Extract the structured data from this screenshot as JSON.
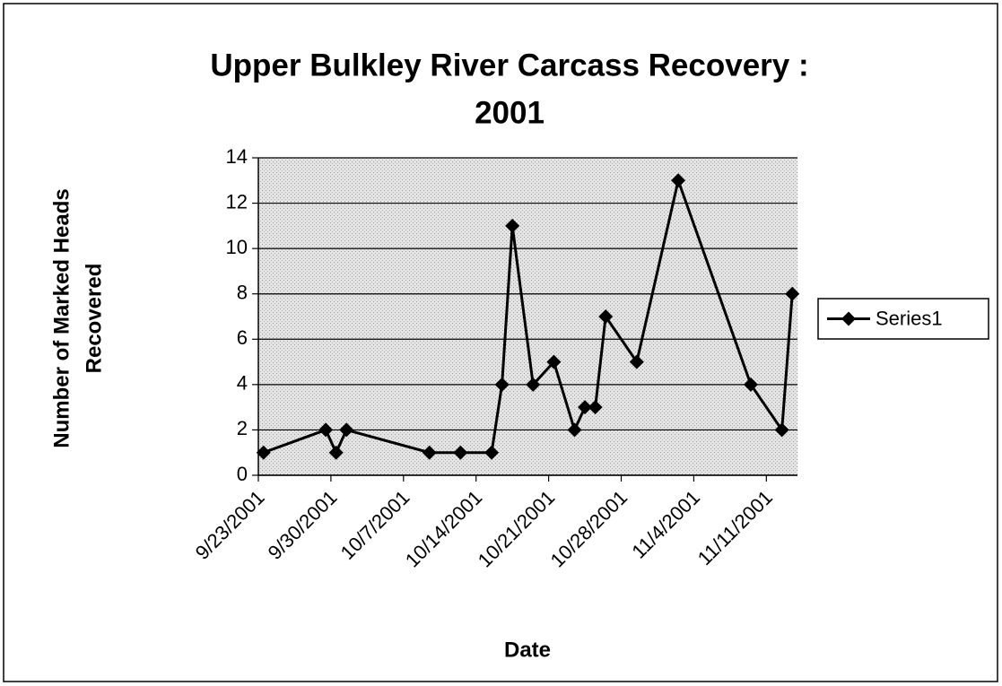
{
  "chart_data": {
    "type": "line",
    "title": "Upper Bulkley River Carcass Recovery :",
    "subtitle": "2001",
    "x_label": "Date",
    "y_label": [
      "Number of Marked Heads",
      "Recovered"
    ],
    "x": [
      "9/23/2001",
      "9/29/2001",
      "9/30/2001",
      "10/1/2001",
      "10/9/2001",
      "10/12/2001",
      "10/15/2001",
      "10/16/2001",
      "10/17/2001",
      "10/19/2001",
      "10/21/2001",
      "10/23/2001",
      "10/24/2001",
      "10/25/2001",
      "10/26/2001",
      "10/29/2001",
      "11/2/2001",
      "11/9/2001",
      "11/12/2001",
      "11/13/2001"
    ],
    "series": [
      {
        "name": "Series1",
        "color": "#000000",
        "values": [
          1,
          2,
          1,
          2,
          1,
          1,
          1,
          4,
          11,
          4,
          5,
          2,
          3,
          3,
          7,
          5,
          13,
          4,
          2,
          8
        ]
      }
    ],
    "xlim": [
      "9/23/2001",
      "11/14/2001"
    ],
    "xticks": [
      "9/23/2001",
      "9/30/2001",
      "10/7/2001",
      "10/14/2001",
      "10/21/2001",
      "10/28/2001",
      "11/4/2001",
      "11/11/2001"
    ],
    "ylim": [
      0,
      14
    ],
    "yticks": [
      0,
      2,
      4,
      6,
      8,
      10,
      12,
      14
    ],
    "grid": true,
    "legend": "right",
    "background": "#d9d9d9"
  }
}
